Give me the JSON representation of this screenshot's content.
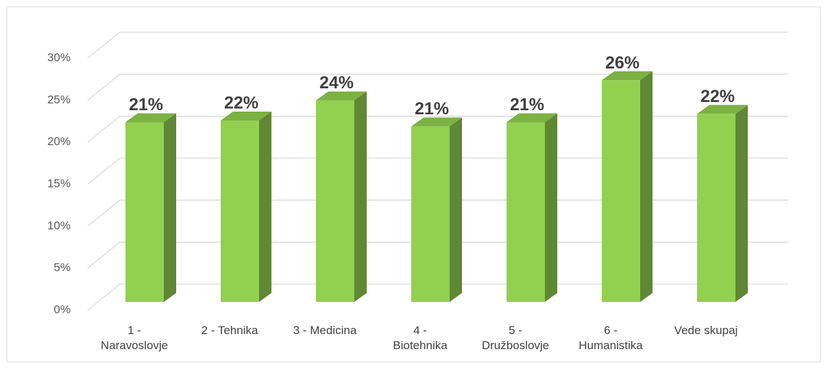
{
  "chart_data": {
    "type": "bar3d",
    "categories": [
      "1 - Naravoslovje",
      "2 - Tehnika",
      "3 - Medicina",
      "4 - Biotehnika",
      "5 - Družboslovje",
      "6 - Humanistika",
      "Vede skupaj"
    ],
    "values": [
      21.4,
      21.6,
      24.0,
      20.9,
      21.4,
      26.4,
      22.4
    ],
    "value_labels": [
      "21%",
      "22%",
      "24%",
      "21%",
      "21%",
      "26%",
      "22%"
    ],
    "color": "#92d050",
    "ylim": [
      0,
      30
    ],
    "yticks": [
      {
        "value": 0,
        "label": "0%"
      },
      {
        "value": 5,
        "label": "5%"
      },
      {
        "value": 10,
        "label": "10%"
      },
      {
        "value": 15,
        "label": "15%"
      },
      {
        "value": 20,
        "label": "20%"
      },
      {
        "value": 25,
        "label": "25%"
      },
      {
        "value": 30,
        "label": "30%"
      }
    ],
    "grid": true
  }
}
